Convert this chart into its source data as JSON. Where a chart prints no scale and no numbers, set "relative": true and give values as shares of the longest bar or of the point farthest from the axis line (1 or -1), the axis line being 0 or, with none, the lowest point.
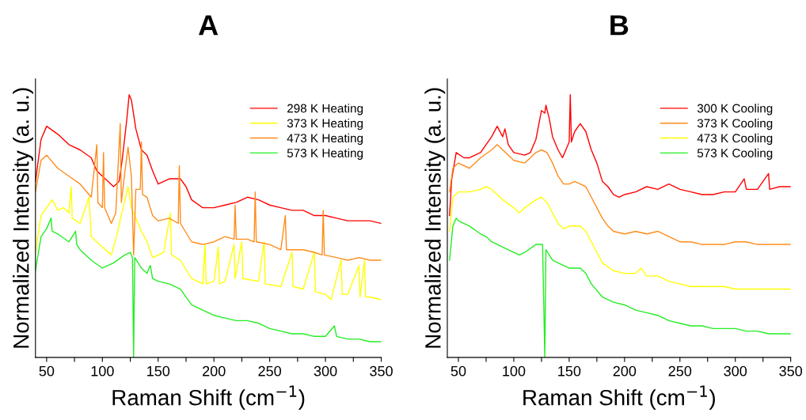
{
  "chart_data": [
    {
      "type": "line",
      "title": "A",
      "xlabel": "Raman Shift (cm$^{−1}$)",
      "ylabel": "Normalized Intensity (a. u.)",
      "relative": true,
      "xlim": [
        40,
        350
      ],
      "xticks": [
        50,
        {
          "value": 75,
          "label": null
        },
        100,
        {
          "value": 125,
          "label": null
        },
        150,
        {
          "value": 175,
          "label": null
        },
        200,
        {
          "value": 225,
          "label": null
        },
        250,
        {
          "value": 275,
          "label": null
        },
        300,
        {
          "value": 325,
          "label": null
        },
        350
      ],
      "tick_labels": "x",
      "legend": "top right",
      "grid": false,
      "line_style": "solid",
      "marker": "none",
      "series": [
        {
          "name": "298 K Heating",
          "color": "#ff0000",
          "x": [
            40,
            45,
            50,
            60,
            70,
            80,
            90,
            95,
            100,
            105,
            110,
            115,
            118,
            122,
            124,
            126,
            130,
            135,
            140,
            145,
            150,
            160,
            170,
            175,
            180,
            190,
            200,
            210,
            220,
            230,
            240,
            250,
            260,
            270,
            280,
            290,
            300,
            310,
            320,
            330,
            340,
            350
          ],
          "values": [
            0.67,
            0.83,
            0.88,
            0.85,
            0.81,
            0.79,
            0.76,
            0.71,
            0.69,
            0.67,
            0.65,
            0.67,
            0.76,
            0.91,
            1.0,
            0.98,
            0.87,
            0.79,
            0.77,
            0.71,
            0.66,
            0.68,
            0.68,
            0.65,
            0.6,
            0.57,
            0.57,
            0.58,
            0.59,
            0.61,
            0.6,
            0.58,
            0.57,
            0.56,
            0.56,
            0.54,
            0.54,
            0.53,
            0.52,
            0.52,
            0.52,
            0.51
          ]
        },
        {
          "name": "373 K Heating",
          "color": "#ffff00",
          "x": [
            40,
            45,
            50,
            55,
            60,
            65,
            70,
            72,
            73,
            80,
            88,
            90,
            100,
            108,
            112,
            118,
            123,
            126,
            130,
            135,
            140,
            145,
            150,
            155,
            161,
            162,
            170,
            180,
            190,
            192,
            193,
            200,
            204,
            205,
            210,
            218,
            219,
            225,
            226,
            240,
            245,
            246,
            260,
            270,
            271,
            280,
            290,
            291,
            300,
            305,
            314,
            315,
            320,
            330,
            331,
            335,
            336,
            340,
            350
          ],
          "values": [
            0.4,
            0.54,
            0.57,
            0.6,
            0.56,
            0.57,
            0.55,
            0.65,
            0.53,
            0.51,
            0.61,
            0.46,
            0.42,
            0.39,
            0.45,
            0.56,
            0.65,
            0.57,
            0.53,
            0.48,
            0.44,
            0.38,
            0.39,
            0.4,
            0.55,
            0.39,
            0.37,
            0.3,
            0.28,
            0.43,
            0.28,
            0.29,
            0.42,
            0.28,
            0.29,
            0.43,
            0.3,
            0.44,
            0.3,
            0.29,
            0.44,
            0.28,
            0.27,
            0.4,
            0.27,
            0.26,
            0.4,
            0.25,
            0.24,
            0.22,
            0.37,
            0.24,
            0.24,
            0.35,
            0.23,
            0.37,
            0.23,
            0.23,
            0.22
          ]
        },
        {
          "name": "473 K Heating",
          "color": "#ff8c1a",
          "x": [
            40,
            45,
            50,
            60,
            70,
            80,
            90,
            95,
            96,
            100,
            101,
            102,
            108,
            112,
            116,
            117,
            120,
            123,
            126,
            128,
            130,
            134,
            135,
            136,
            140,
            145,
            150,
            160,
            168,
            169,
            170,
            180,
            190,
            200,
            210,
            218,
            219,
            220,
            230,
            236,
            237,
            238,
            250,
            260,
            264,
            265,
            270,
            280,
            290,
            297,
            298,
            299,
            310,
            320,
            330,
            340,
            350
          ],
          "values": [
            0.63,
            0.75,
            0.77,
            0.72,
            0.69,
            0.66,
            0.61,
            0.81,
            0.59,
            0.57,
            0.78,
            0.57,
            0.51,
            0.55,
            0.89,
            0.59,
            0.7,
            0.8,
            0.69,
            0.39,
            0.64,
            0.64,
            0.82,
            0.62,
            0.61,
            0.54,
            0.52,
            0.53,
            0.51,
            0.73,
            0.51,
            0.44,
            0.43,
            0.44,
            0.46,
            0.45,
            0.58,
            0.45,
            0.45,
            0.44,
            0.63,
            0.44,
            0.43,
            0.41,
            0.54,
            0.41,
            0.41,
            0.41,
            0.4,
            0.39,
            0.56,
            0.39,
            0.38,
            0.37,
            0.38,
            0.37,
            0.37
          ]
        },
        {
          "name": "573 K Heating",
          "color": "#22ee22",
          "x": [
            40,
            45,
            50,
            54,
            55,
            60,
            70,
            76,
            77,
            80,
            90,
            100,
            105,
            110,
            120,
            125,
            127,
            128,
            129,
            135,
            140,
            143,
            145,
            150,
            160,
            170,
            180,
            190,
            200,
            210,
            220,
            230,
            240,
            250,
            260,
            270,
            280,
            290,
            300,
            308,
            310,
            320,
            330,
            340,
            350
          ],
          "values": [
            0.33,
            0.46,
            0.49,
            0.53,
            0.48,
            0.47,
            0.44,
            0.48,
            0.43,
            0.41,
            0.37,
            0.34,
            0.35,
            0.36,
            0.39,
            0.4,
            0.38,
            0,
            0.38,
            0.34,
            0.32,
            0.35,
            0.3,
            0.29,
            0.28,
            0.26,
            0.2,
            0.18,
            0.16,
            0.15,
            0.14,
            0.14,
            0.13,
            0.11,
            0.1,
            0.09,
            0.09,
            0.08,
            0.08,
            0.12,
            0.08,
            0.07,
            0.07,
            0.06,
            0.06
          ]
        }
      ]
    },
    {
      "type": "line",
      "title": "B",
      "xlabel": "Raman Shift (cm$^{−1}$)",
      "ylabel": "Normalized Intensity (a. u.)",
      "relative": true,
      "xlim": [
        40,
        350
      ],
      "xticks": [
        50,
        {
          "value": 75,
          "label": null
        },
        100,
        {
          "value": 125,
          "label": null
        },
        150,
        {
          "value": 175,
          "label": null
        },
        200,
        {
          "value": 225,
          "label": null
        },
        250,
        {
          "value": 275,
          "label": null
        },
        300,
        {
          "value": 325,
          "label": null
        },
        350
      ],
      "tick_labels": "x",
      "legend": "top right",
      "grid": false,
      "line_style": "solid",
      "marker": "none",
      "series": [
        {
          "name": "300 K Cooling",
          "color": "#ff0000",
          "x": [
            42,
            44,
            48,
            55,
            60,
            70,
            80,
            85,
            90,
            92,
            95,
            100,
            110,
            115,
            120,
            125,
            128,
            129,
            132,
            135,
            140,
            144,
            148,
            150,
            151,
            152,
            155,
            160,
            165,
            170,
            175,
            180,
            185,
            190,
            195,
            200,
            210,
            220,
            230,
            240,
            250,
            260,
            270,
            280,
            290,
            300,
            308,
            310,
            320,
            330,
            331,
            340,
            350
          ],
          "values": [
            0.54,
            0.68,
            0.78,
            0.76,
            0.76,
            0.78,
            0.84,
            0.88,
            0.84,
            0.87,
            0.81,
            0.78,
            0.77,
            0.78,
            0.83,
            0.94,
            0.93,
            0.96,
            0.91,
            0.84,
            0.79,
            0.76,
            0.8,
            0.82,
            1.0,
            0.82,
            0.86,
            0.89,
            0.86,
            0.79,
            0.74,
            0.67,
            0.65,
            0.62,
            0.61,
            0.62,
            0.63,
            0.65,
            0.64,
            0.66,
            0.64,
            0.63,
            0.62,
            0.62,
            0.63,
            0.63,
            0.68,
            0.64,
            0.64,
            0.7,
            0.64,
            0.65,
            0.65
          ]
        },
        {
          "name": "373 K Cooling",
          "color": "#ff8c1a",
          "x": [
            42,
            45,
            50,
            60,
            70,
            80,
            85,
            90,
            100,
            110,
            120,
            125,
            130,
            135,
            140,
            145,
            150,
            155,
            160,
            165,
            170,
            175,
            180,
            185,
            190,
            200,
            210,
            220,
            230,
            240,
            250,
            260,
            270,
            280,
            290,
            300,
            310,
            320,
            330,
            340,
            350
          ],
          "values": [
            0.63,
            0.72,
            0.74,
            0.72,
            0.76,
            0.79,
            0.81,
            0.79,
            0.75,
            0.74,
            0.78,
            0.79,
            0.78,
            0.74,
            0.69,
            0.66,
            0.66,
            0.67,
            0.66,
            0.65,
            0.61,
            0.57,
            0.53,
            0.5,
            0.48,
            0.47,
            0.48,
            0.47,
            0.48,
            0.46,
            0.44,
            0.44,
            0.43,
            0.43,
            0.43,
            0.44,
            0.44,
            0.43,
            0.43,
            0.43,
            0.43
          ]
        },
        {
          "name": "473 K Cooling",
          "color": "#ffff00",
          "x": [
            42,
            45,
            50,
            60,
            70,
            75,
            80,
            90,
            100,
            105,
            110,
            120,
            125,
            130,
            135,
            140,
            145,
            150,
            160,
            165,
            170,
            175,
            180,
            190,
            200,
            210,
            215,
            220,
            230,
            240,
            250,
            260,
            270,
            280,
            290,
            300,
            310,
            320,
            330,
            340,
            350
          ],
          "values": [
            0.48,
            0.61,
            0.63,
            0.63,
            0.64,
            0.65,
            0.64,
            0.6,
            0.57,
            0.55,
            0.57,
            0.6,
            0.61,
            0.59,
            0.55,
            0.51,
            0.49,
            0.5,
            0.5,
            0.48,
            0.44,
            0.4,
            0.36,
            0.33,
            0.32,
            0.32,
            0.34,
            0.31,
            0.31,
            0.29,
            0.28,
            0.27,
            0.27,
            0.27,
            0.27,
            0.26,
            0.26,
            0.26,
            0.26,
            0.26,
            0.26
          ]
        },
        {
          "name": "573 K Cooling",
          "color": "#22ee22",
          "x": [
            42,
            45,
            48,
            50,
            60,
            70,
            75,
            80,
            90,
            100,
            105,
            110,
            120,
            126,
            128,
            129,
            135,
            140,
            150,
            160,
            165,
            170,
            180,
            190,
            200,
            210,
            220,
            230,
            240,
            250,
            260,
            270,
            280,
            290,
            300,
            310,
            320,
            330,
            340,
            350
          ],
          "values": [
            0.37,
            0.5,
            0.53,
            0.52,
            0.5,
            0.47,
            0.46,
            0.44,
            0.42,
            0.4,
            0.39,
            0.4,
            0.43,
            0.43,
            0,
            0.41,
            0.37,
            0.36,
            0.34,
            0.34,
            0.32,
            0.28,
            0.23,
            0.21,
            0.2,
            0.18,
            0.17,
            0.16,
            0.14,
            0.13,
            0.12,
            0.12,
            0.11,
            0.11,
            0.11,
            0.1,
            0.1,
            0.09,
            0.09,
            0.09
          ]
        }
      ]
    }
  ]
}
